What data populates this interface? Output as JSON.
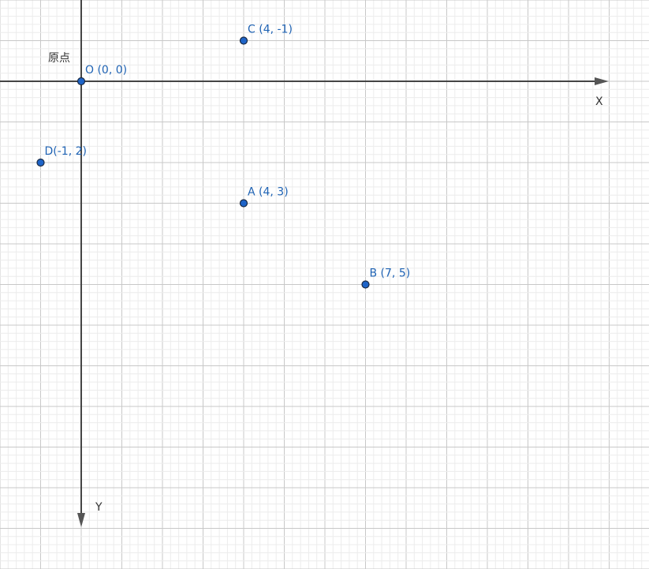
{
  "axes": {
    "x_label": "X",
    "y_label": "Y",
    "origin_label": "原点"
  },
  "points": [
    {
      "label": "O (0, 0)",
      "x": 0,
      "y": 0
    },
    {
      "label": "C (4, -1)",
      "x": 4,
      "y": -1
    },
    {
      "label": "D(-1, 2)",
      "x": -1,
      "y": 2
    },
    {
      "label": "A (4, 3)",
      "x": 4,
      "y": 3
    },
    {
      "label": "B (7, 5)",
      "x": 7,
      "y": 5
    }
  ]
}
